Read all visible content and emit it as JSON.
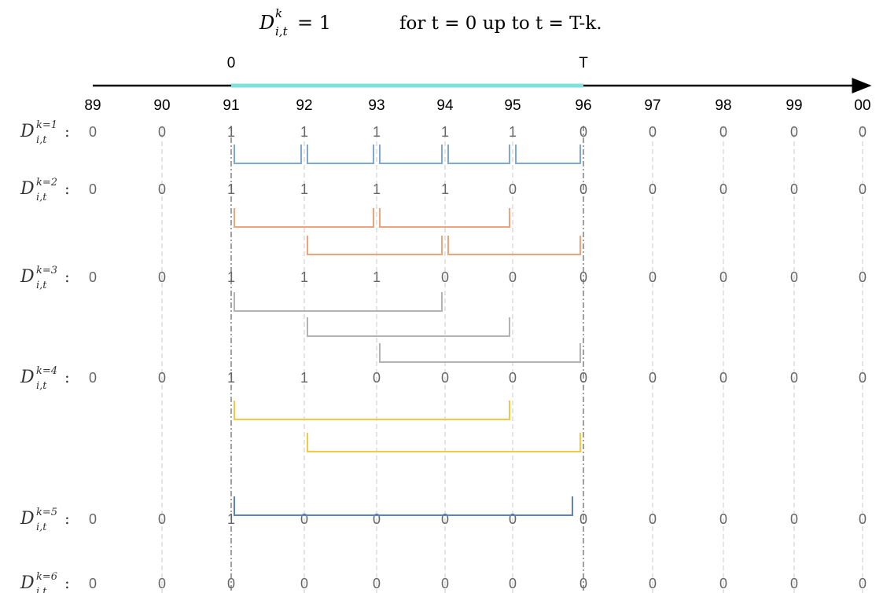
{
  "formula": {
    "symbol": "D",
    "sup": "k",
    "sub": "i,t",
    "equals": "= 1",
    "condition": "for t = 0 up to t = T-k."
  },
  "timeline": {
    "start_label": "0",
    "end_label": "T",
    "years": [
      "89",
      "90",
      "91",
      "92",
      "93",
      "94",
      "95",
      "96",
      "97",
      "98",
      "99",
      "00"
    ],
    "highlight_from_index": 2,
    "highlight_to_index": 7,
    "axis_color": "#000000",
    "highlight_color": "#7fe0dc"
  },
  "rows": [
    {
      "label_sup": "k=1",
      "label_sub": "i,t",
      "values": [
        "0",
        "0",
        "1",
        "1",
        "1",
        "1",
        "1",
        "0",
        "0",
        "0",
        "0",
        "0"
      ]
    },
    {
      "label_sup": "k=2",
      "label_sub": "i,t",
      "values": [
        "0",
        "0",
        "1",
        "1",
        "1",
        "1",
        "0",
        "0",
        "0",
        "0",
        "0",
        "0"
      ]
    },
    {
      "label_sup": "k=3",
      "label_sub": "i,t",
      "values": [
        "0",
        "0",
        "1",
        "1",
        "1",
        "0",
        "0",
        "0",
        "0",
        "0",
        "0",
        "0"
      ]
    },
    {
      "label_sup": "k=4",
      "label_sub": "i,t",
      "values": [
        "0",
        "0",
        "1",
        "1",
        "0",
        "0",
        "0",
        "0",
        "0",
        "0",
        "0",
        "0"
      ]
    },
    {
      "label_sup": "k=5",
      "label_sub": "i,t",
      "values": [
        "0",
        "0",
        "1",
        "0",
        "0",
        "0",
        "0",
        "0",
        "0",
        "0",
        "0",
        "0"
      ]
    },
    {
      "label_sup": "k=6",
      "label_sub": "i,t",
      "values": [
        "0",
        "0",
        "0",
        "0",
        "0",
        "0",
        "0",
        "0",
        "0",
        "0",
        "0",
        "0"
      ]
    }
  ],
  "windows": [
    {
      "group": 1,
      "color": "#7fa8d4",
      "from": 2,
      "to": 3
    },
    {
      "group": 1,
      "color": "#7fa8d4",
      "from": 3,
      "to": 4
    },
    {
      "group": 1,
      "color": "#7fa8d4",
      "from": 4,
      "to": 5
    },
    {
      "group": 1,
      "color": "#7fa8d4",
      "from": 5,
      "to": 6
    },
    {
      "group": 1,
      "color": "#7fa8d4",
      "from": 6,
      "to": 7
    },
    {
      "group": 2,
      "color": "#f0a27a",
      "from": 2,
      "to": 4
    },
    {
      "group": 2,
      "color": "#f0a27a",
      "from": 4,
      "to": 6
    },
    {
      "group": 2,
      "color": "#f0a27a",
      "from": 3,
      "to": 5
    },
    {
      "group": 2,
      "color": "#f0a27a",
      "from": 5,
      "to": 7
    },
    {
      "group": 3,
      "color": "#b3b3b3",
      "from": 2,
      "to": 5
    },
    {
      "group": 3,
      "color": "#b3b3b3",
      "from": 3,
      "to": 6
    },
    {
      "group": 3,
      "color": "#b3b3b3",
      "from": 4,
      "to": 7
    },
    {
      "group": 4,
      "color": "#f5c842",
      "from": 2,
      "to": 6
    },
    {
      "group": 4,
      "color": "#f5c842",
      "from": 3,
      "to": 7
    },
    {
      "group": 5,
      "color": "#5b7fc9",
      "from": 2,
      "to": 7
    }
  ]
}
